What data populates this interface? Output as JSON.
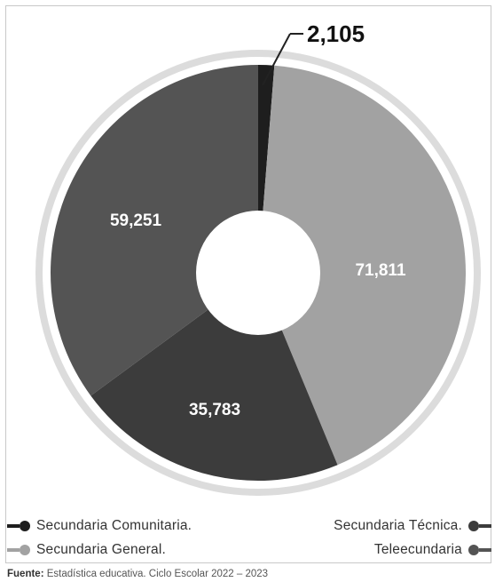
{
  "chart_data": {
    "type": "pie",
    "title": "",
    "series": [
      {
        "name": "Secundaria Comunitaria.",
        "value": 2105,
        "label": "2,105",
        "color": "#1e1e1e"
      },
      {
        "name": "Secundaria General.",
        "value": 71811,
        "label": "71,811",
        "color": "#a2a2a2"
      },
      {
        "name": "Secundaria Técnica.",
        "value": 35783,
        "label": "35,783",
        "color": "#3c3c3c"
      },
      {
        "name": "Teleecundaria",
        "value": 59251,
        "label": "59,251",
        "color": "#545454"
      }
    ],
    "legend_placement": "bottom"
  },
  "footer": {
    "label": "Fuente:",
    "text": "Estadística educativa. Ciclo Escolar 2022 – 2023"
  }
}
